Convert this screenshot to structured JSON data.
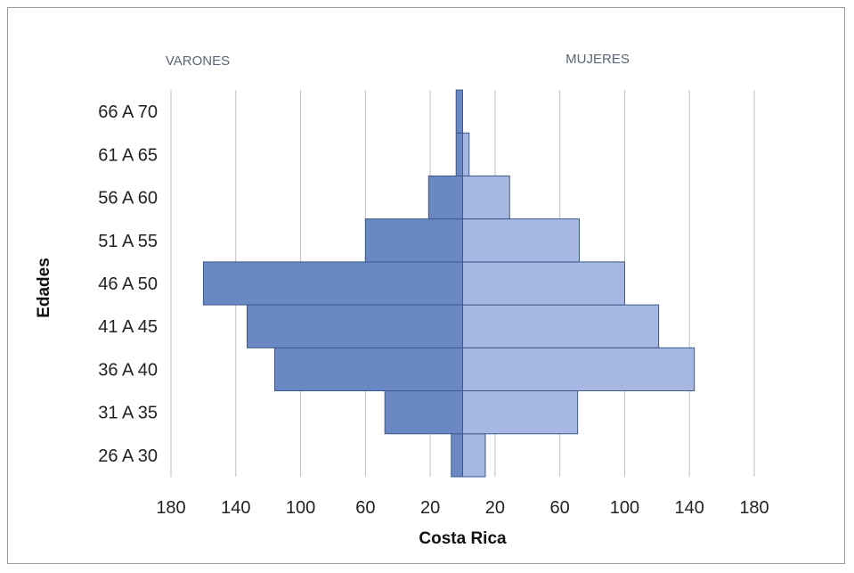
{
  "chart_data": {
    "type": "bar",
    "orientation": "horizontal",
    "subtype": "population-pyramid",
    "categories": [
      "26 A 30",
      "31 A 35",
      "36 A 40",
      "41 A 45",
      "46 A 50",
      "51 A 55",
      "56 A 60",
      "61 A 65",
      "66 A 70"
    ],
    "series": [
      {
        "name": "VARONES",
        "values": [
          7,
          48,
          116,
          133,
          160,
          60,
          21,
          4,
          4
        ],
        "side": "left",
        "color": "#6a89c4"
      },
      {
        "name": "MUJERES",
        "values": [
          14,
          71,
          143,
          121,
          100,
          72,
          29,
          4,
          0
        ],
        "side": "right",
        "color": "#a6b8e2"
      }
    ],
    "xlabel": "Costa Rica",
    "ylabel": "Edades",
    "xlim": [
      -180,
      180
    ],
    "xticks": [
      -180,
      -140,
      -100,
      -60,
      -20,
      20,
      60,
      100,
      140,
      180
    ],
    "xtick_labels": [
      "180",
      "140",
      "100",
      "60",
      "20",
      "20",
      "60",
      "100",
      "140",
      "180"
    ],
    "grid": true,
    "bar_edge_color": "#3d5a8c",
    "grid_color": "#bfbfbf"
  }
}
